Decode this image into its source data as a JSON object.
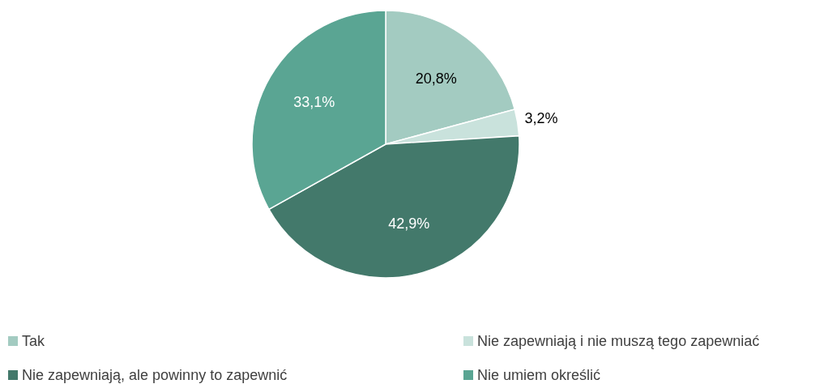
{
  "chart_data": {
    "type": "pie",
    "categories": [
      "Tak",
      "Nie zapewniają i nie muszą tego zapewniać",
      "Nie zapewniają, ale powinny to zapewnić",
      "Nie umiem określić"
    ],
    "values": [
      20.8,
      3.2,
      42.9,
      33.1
    ],
    "colors": [
      "#a3cbc1",
      "#c9e2dc",
      "#43796b",
      "#5aa593"
    ],
    "value_labels": [
      "20,8%",
      "3,2%",
      "42,9%",
      "33,1%"
    ],
    "legend": "bottom"
  }
}
